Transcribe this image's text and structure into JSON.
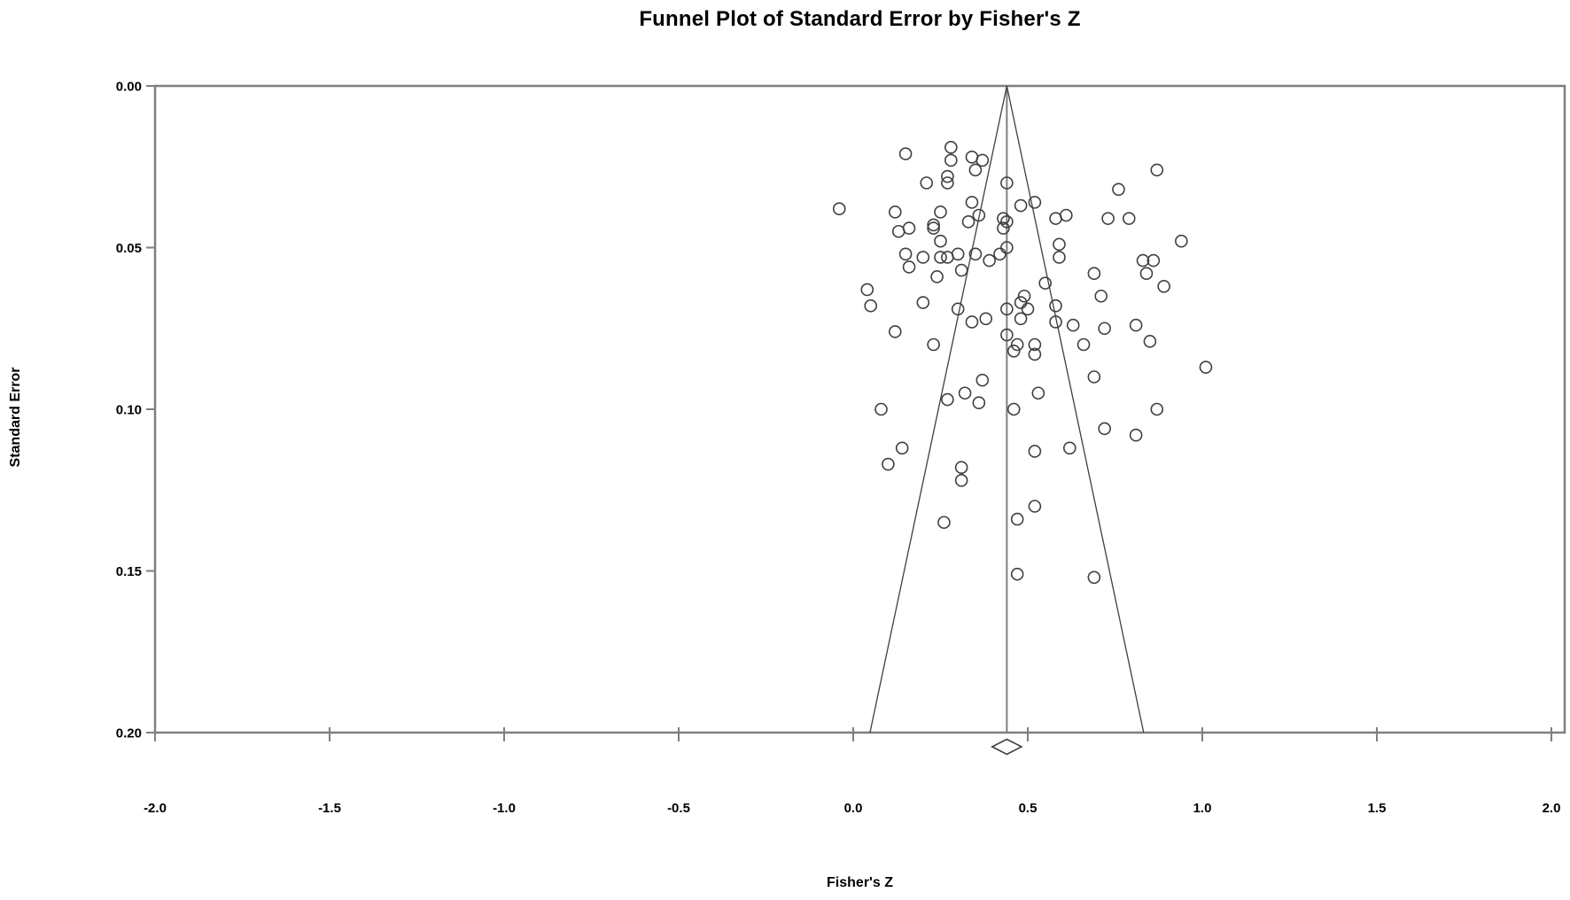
{
  "title": "Funnel Plot of Standard Error by Fisher's Z",
  "chart_data": {
    "type": "scatter",
    "subtype": "funnel-plot",
    "title": "Funnel Plot of Standard Error by Fisher's Z",
    "xlabel": "Fisher's Z",
    "ylabel": "Standard Error",
    "xlim": [
      -2.0,
      2.0
    ],
    "ylim": [
      0.0,
      0.2
    ],
    "y_axis_inverted": true,
    "grid": false,
    "legend": false,
    "x_ticks": [
      -2.0,
      -1.5,
      -1.0,
      -0.5,
      0.0,
      0.5,
      1.0,
      1.5,
      2.0
    ],
    "x_tick_labels": [
      "-2.0",
      "-1.5",
      "-1.0",
      "-0.5",
      "0.0",
      "0.5",
      "1.0",
      "1.5",
      "2.0"
    ],
    "y_ticks": [
      0.0,
      0.05,
      0.1,
      0.15,
      0.2
    ],
    "y_tick_labels": [
      "0.00",
      "0.05",
      "0.10",
      "0.15",
      "0.20"
    ],
    "mean_fishers_z": 0.44,
    "pseudo_ci_multiplier": 1.96,
    "funnel": {
      "apex_x": 0.44,
      "apex_se": 0.0,
      "base_se": 0.2,
      "left_base_x": 0.048,
      "right_base_x": 0.832
    },
    "summary_diamond": {
      "center_x": 0.44,
      "half_width": 0.042
    },
    "colors": {
      "background": "#ffffff",
      "frame": "#7f7f7f",
      "mean_line": "#7f7f7f",
      "funnel_line": "#3f3f3f",
      "marker_outline": "#3f3f3f",
      "text": "#000000"
    },
    "marker": {
      "shape": "open-circle",
      "radius_px": 6.5
    },
    "points": [
      [
        0.15,
        0.021
      ],
      [
        0.28,
        0.019
      ],
      [
        0.28,
        0.023
      ],
      [
        0.21,
        0.03
      ],
      [
        0.27,
        0.028
      ],
      [
        0.27,
        0.03
      ],
      [
        -0.04,
        0.038
      ],
      [
        0.12,
        0.039
      ],
      [
        0.25,
        0.039
      ],
      [
        0.23,
        0.043
      ],
      [
        0.23,
        0.044
      ],
      [
        0.16,
        0.044
      ],
      [
        0.13,
        0.045
      ],
      [
        0.25,
        0.048
      ],
      [
        0.15,
        0.052
      ],
      [
        0.2,
        0.053
      ],
      [
        0.25,
        0.053
      ],
      [
        0.27,
        0.053
      ],
      [
        0.3,
        0.052
      ],
      [
        0.16,
        0.056
      ],
      [
        0.24,
        0.059
      ],
      [
        0.31,
        0.057
      ],
      [
        0.04,
        0.063
      ],
      [
        0.05,
        0.068
      ],
      [
        0.2,
        0.067
      ],
      [
        0.3,
        0.069
      ],
      [
        0.12,
        0.076
      ],
      [
        0.23,
        0.08
      ],
      [
        0.34,
        0.022
      ],
      [
        0.37,
        0.023
      ],
      [
        0.35,
        0.026
      ],
      [
        0.44,
        0.03
      ],
      [
        0.34,
        0.036
      ],
      [
        0.52,
        0.036
      ],
      [
        0.48,
        0.037
      ],
      [
        0.36,
        0.04
      ],
      [
        0.33,
        0.042
      ],
      [
        0.43,
        0.041
      ],
      [
        0.44,
        0.042
      ],
      [
        0.58,
        0.041
      ],
      [
        0.61,
        0.04
      ],
      [
        0.43,
        0.044
      ],
      [
        0.59,
        0.049
      ],
      [
        0.59,
        0.053
      ],
      [
        0.44,
        0.05
      ],
      [
        0.35,
        0.052
      ],
      [
        0.39,
        0.054
      ],
      [
        0.42,
        0.052
      ],
      [
        0.69,
        0.058
      ],
      [
        0.55,
        0.061
      ],
      [
        0.71,
        0.065
      ],
      [
        0.49,
        0.065
      ],
      [
        0.48,
        0.067
      ],
      [
        0.44,
        0.069
      ],
      [
        0.5,
        0.069
      ],
      [
        0.48,
        0.072
      ],
      [
        0.58,
        0.068
      ],
      [
        0.38,
        0.072
      ],
      [
        0.34,
        0.073
      ],
      [
        0.58,
        0.073
      ],
      [
        0.63,
        0.074
      ],
      [
        0.44,
        0.077
      ],
      [
        0.66,
        0.08
      ],
      [
        0.47,
        0.08
      ],
      [
        0.52,
        0.08
      ],
      [
        0.52,
        0.083
      ],
      [
        0.46,
        0.082
      ],
      [
        0.87,
        0.026
      ],
      [
        0.76,
        0.032
      ],
      [
        0.73,
        0.041
      ],
      [
        0.79,
        0.041
      ],
      [
        0.94,
        0.048
      ],
      [
        0.83,
        0.054
      ],
      [
        0.86,
        0.054
      ],
      [
        0.84,
        0.058
      ],
      [
        0.89,
        0.062
      ],
      [
        0.81,
        0.074
      ],
      [
        0.85,
        0.079
      ],
      [
        0.72,
        0.075
      ],
      [
        1.01,
        0.087
      ],
      [
        0.08,
        0.1
      ],
      [
        0.27,
        0.097
      ],
      [
        0.32,
        0.095
      ],
      [
        0.14,
        0.112
      ],
      [
        0.1,
        0.117
      ],
      [
        0.31,
        0.118
      ],
      [
        0.31,
        0.122
      ],
      [
        0.26,
        0.135
      ],
      [
        0.37,
        0.091
      ],
      [
        0.36,
        0.098
      ],
      [
        0.53,
        0.095
      ],
      [
        0.46,
        0.1
      ],
      [
        0.69,
        0.09
      ],
      [
        0.72,
        0.106
      ],
      [
        0.52,
        0.113
      ],
      [
        0.62,
        0.112
      ],
      [
        0.52,
        0.13
      ],
      [
        0.47,
        0.134
      ],
      [
        0.47,
        0.151
      ],
      [
        0.69,
        0.152
      ],
      [
        0.87,
        0.1
      ],
      [
        0.81,
        0.108
      ]
    ]
  }
}
